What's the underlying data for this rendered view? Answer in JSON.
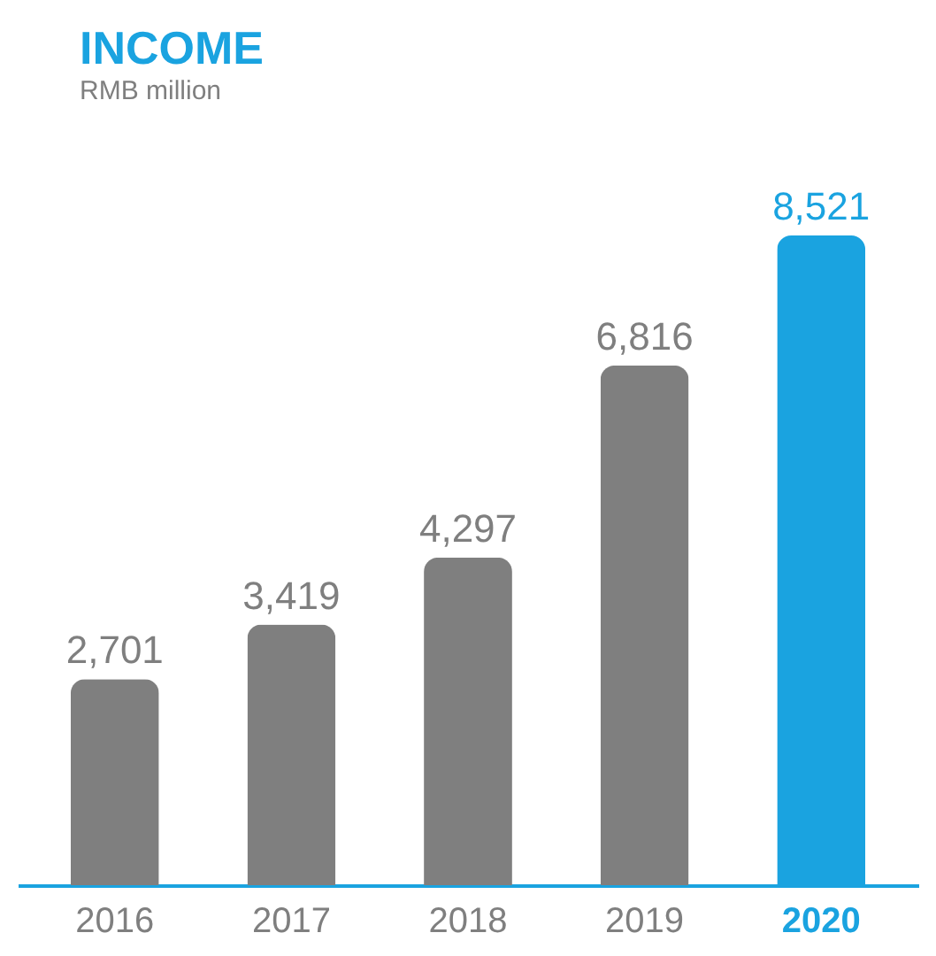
{
  "chart_data": {
    "type": "bar",
    "title": "INCOME",
    "subtitle": "RMB million",
    "categories": [
      "2016",
      "2017",
      "2018",
      "2019",
      "2020"
    ],
    "values": [
      2701,
      3419,
      4297,
      6816,
      8521
    ],
    "colors": [
      "#7f7f7f",
      "#7f7f7f",
      "#7f7f7f",
      "#7f7f7f",
      "#1aa3e0"
    ],
    "value_labels": [
      "2,701",
      "3,419",
      "4,297",
      "6,816",
      "8,521"
    ],
    "grid": false
  }
}
